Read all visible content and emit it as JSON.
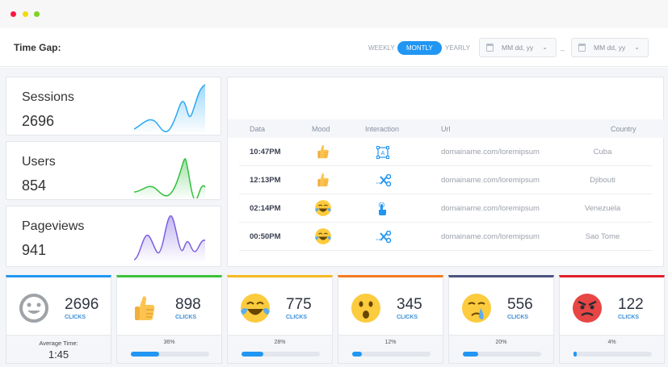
{
  "window": {
    "dots": [
      "#ff1744",
      "#f5d90a",
      "#7ed321"
    ]
  },
  "header": {
    "title": "Time Gap:",
    "options": [
      "WEEKLY",
      "MONTLY",
      "YEARLY"
    ],
    "active": "MONTLY",
    "date_from": {
      "placeholder": "MM dd, yy"
    },
    "date_to": {
      "placeholder": "MM dd, yy"
    },
    "separator": "–"
  },
  "stats": [
    {
      "label": "Sessions",
      "value": "2696",
      "color": "#29a9f2"
    },
    {
      "label": "Users",
      "value": "854",
      "color": "#2fbf3a"
    },
    {
      "label": "Pageviews",
      "value": "941",
      "color": "#7c5ee0"
    }
  ],
  "table": {
    "columns": [
      "Data",
      "Mood",
      "Interaction",
      "Url",
      "Country"
    ],
    "rows": [
      {
        "time": "10:47PM",
        "mood": "thumbs-up",
        "interaction": "text-select",
        "url": "domainame.com/loremipsum",
        "country": "Cuba"
      },
      {
        "time": "12:13PM",
        "mood": "thumbs-up",
        "interaction": "cut",
        "url": "domainame.com/loremipsum",
        "country": "Djibouti"
      },
      {
        "time": "02:14PM",
        "mood": "tears-of-joy",
        "interaction": "tap",
        "url": "domainame.com/loremipsum",
        "country": "Venezuela"
      },
      {
        "time": "00:50PM",
        "mood": "tears-of-joy",
        "interaction": "cut",
        "url": "domainame.com/loremipsum",
        "country": "Sao Tome"
      }
    ]
  },
  "moods": [
    {
      "icon": "neutral-smile",
      "value": "2696",
      "unit": "CLICKS",
      "color": "#2196f3",
      "avg_label": "Average Time:",
      "avg_value": "1:45"
    },
    {
      "icon": "thumbs-up",
      "value": "898",
      "unit": "CLICKS",
      "color": "#3cc13b",
      "percent": 36,
      "percent_label": "36%"
    },
    {
      "icon": "tears-of-joy",
      "value": "775",
      "unit": "CLICKS",
      "color": "#f7b924",
      "percent": 28,
      "percent_label": "28%"
    },
    {
      "icon": "surprised",
      "value": "345",
      "unit": "CLICKS",
      "color": "#f47b20",
      "percent": 12,
      "percent_label": "12%"
    },
    {
      "icon": "crying",
      "value": "556",
      "unit": "CLICKS",
      "color": "#4c5480",
      "percent": 20,
      "percent_label": "20%"
    },
    {
      "icon": "angry",
      "value": "122",
      "unit": "CLICKS",
      "color": "#e0202b",
      "percent": 4,
      "percent_label": "4%"
    }
  ]
}
